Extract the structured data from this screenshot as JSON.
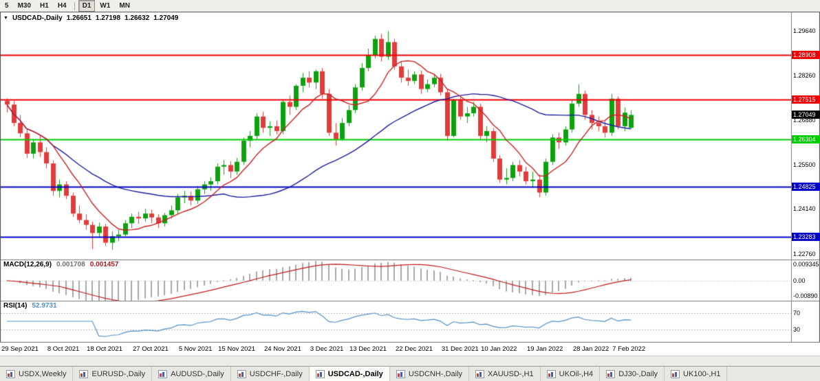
{
  "toolbar": {
    "timeframes": [
      "5",
      "M30",
      "H1",
      "H4",
      "D1",
      "W1",
      "MN"
    ],
    "active": "D1",
    "separator_after": "H4"
  },
  "chart": {
    "title": {
      "collapse_icon": "▼",
      "symbol": "USDCAD-,Daily",
      "open": "1.26651",
      "high": "1.27198",
      "low": "1.26632",
      "close": "1.27049"
    },
    "price_axis": {
      "grid": [
        {
          "text": "1.29640",
          "value": 1.2964
        },
        {
          "text": "1.28260",
          "value": 1.2826
        },
        {
          "text": "1.26880",
          "value": 1.2688
        },
        {
          "text": "1.25500",
          "value": 1.255
        },
        {
          "text": "1.24140",
          "value": 1.2414
        },
        {
          "text": "1.22760",
          "value": 1.2276
        }
      ]
    },
    "hlines": [
      {
        "text": "1.28908",
        "value": 1.28908,
        "color": "#ee0000",
        "width": 2
      },
      {
        "text": "1.27515",
        "value": 1.27515,
        "color": "#ee0000",
        "width": 2
      },
      {
        "text": "1.26304",
        "value": 1.26304,
        "color": "#00cc00",
        "width": 2
      },
      {
        "text": "1.24825",
        "value": 1.24825,
        "color": "#0000c8",
        "width": 2
      },
      {
        "text": "1.23283",
        "value": 1.23283,
        "color": "#0000c8",
        "width": 2
      }
    ],
    "current_price": {
      "text": "1.27049",
      "value": 1.27049,
      "bg": "#000000"
    }
  },
  "macd": {
    "name": "MACD(12,26,9)",
    "main_value": "0.001708",
    "signal_value": "0.001457",
    "axis_max": "0.009345",
    "axis_zero": "0.00",
    "axis_min": "-0.00890",
    "range_max": 0.009345,
    "range_min": -0.0089
  },
  "rsi": {
    "name": "RSI(14)",
    "value": "52.9731",
    "levels": [
      {
        "text": "70",
        "value": 70
      },
      {
        "text": "30",
        "value": 30
      }
    ]
  },
  "tabs": [
    {
      "label": "USDX,Weekly",
      "active": false
    },
    {
      "label": "EURUSD-,Daily",
      "active": false
    },
    {
      "label": "AUDUSD-,Daily",
      "active": false
    },
    {
      "label": "USDCHF-,Daily",
      "active": false
    },
    {
      "label": "USDCAD-,Daily",
      "active": true
    },
    {
      "label": "USDCNH-,Daily",
      "active": false
    },
    {
      "label": "XAUUSD-,H1",
      "active": false
    },
    {
      "label": "UKOil-,H4",
      "active": false
    },
    {
      "label": "DJ30-,Daily",
      "active": false
    },
    {
      "label": "UK100-,H1",
      "active": false
    }
  ],
  "colors": {
    "bull": "#0ea10e",
    "bear": "#e23b3b",
    "ma_fast": "#cc2020",
    "ma_slow": "#1c1c9e",
    "macd_hist": "#a8a8a8",
    "macd_signal": "#c01818",
    "rsi": "#4f8fca"
  },
  "chart_data": {
    "type": "candlestick",
    "symbol": "USDCAD",
    "timeframe": "Daily",
    "title": "USDCAD-,Daily",
    "ohlc_current": {
      "open": 1.26651,
      "high": 1.27198,
      "low": 1.26632,
      "close": 1.27049
    },
    "price_range": [
      1.2258,
      1.3022
    ],
    "horizontal_levels": [
      1.28908,
      1.27515,
      1.26304,
      1.24825,
      1.23283
    ],
    "moving_averages": [
      {
        "name": "fast-ma",
        "period": 8,
        "color": "#cc2020"
      },
      {
        "name": "slow-ma",
        "period": 34,
        "color": "#1c1c9e"
      }
    ],
    "indicators": [
      {
        "type": "MACD",
        "params": [
          12,
          26,
          9
        ],
        "last_main": 0.001708,
        "last_signal": 0.001457,
        "panel_range": [
          -0.0089,
          0.009345
        ]
      },
      {
        "type": "RSI",
        "params": [
          14
        ],
        "last": 52.9731,
        "levels": [
          70,
          30
        ]
      }
    ],
    "x_labels": [
      {
        "text": "29 Sep 2021",
        "bar": 0
      },
      {
        "text": "8 Oct 2021",
        "bar": 7
      },
      {
        "text": "18 Oct 2021",
        "bar": 13
      },
      {
        "text": "27 Oct 2021",
        "bar": 20
      },
      {
        "text": "5 Nov 2021",
        "bar": 27
      },
      {
        "text": "15 Nov 2021",
        "bar": 33
      },
      {
        "text": "24 Nov 2021",
        "bar": 40
      },
      {
        "text": "3 Dec 2021",
        "bar": 47
      },
      {
        "text": "13 Dec 2021",
        "bar": 53
      },
      {
        "text": "22 Dec 2021",
        "bar": 60
      },
      {
        "text": "31 Dec 2021",
        "bar": 67
      },
      {
        "text": "10 Jan 2022",
        "bar": 73
      },
      {
        "text": "19 Jan 2022",
        "bar": 80
      },
      {
        "text": "28 Jan 2022",
        "bar": 87
      },
      {
        "text": "7 Feb 2022",
        "bar": 93
      }
    ],
    "candles": [
      [
        1.2748,
        1.2756,
        1.2712,
        1.2737
      ],
      [
        1.2737,
        1.2748,
        1.267,
        1.268
      ],
      [
        1.268,
        1.2705,
        1.2636,
        1.2648
      ],
      [
        1.2648,
        1.2663,
        1.2572,
        1.2585
      ],
      [
        1.2585,
        1.263,
        1.257,
        1.262
      ],
      [
        1.262,
        1.264,
        1.2575,
        1.259
      ],
      [
        1.259,
        1.2605,
        1.254,
        1.2555
      ],
      [
        1.2555,
        1.2565,
        1.2455,
        1.247
      ],
      [
        1.247,
        1.2505,
        1.245,
        1.249
      ],
      [
        1.249,
        1.25,
        1.2445,
        1.2455
      ],
      [
        1.2455,
        1.2465,
        1.239,
        1.24
      ],
      [
        1.24,
        1.2425,
        1.237,
        1.238
      ],
      [
        1.238,
        1.2398,
        1.235,
        1.2365
      ],
      [
        1.2365,
        1.2375,
        1.229,
        1.234
      ],
      [
        1.234,
        1.2372,
        1.2325,
        1.236
      ],
      [
        1.236,
        1.2368,
        1.23,
        1.231
      ],
      [
        1.231,
        1.2345,
        1.2288,
        1.233
      ],
      [
        1.233,
        1.235,
        1.2315,
        1.2335
      ],
      [
        1.2335,
        1.238,
        1.233,
        1.237
      ],
      [
        1.237,
        1.24,
        1.2355,
        1.239
      ],
      [
        1.239,
        1.2405,
        1.2368,
        1.2385
      ],
      [
        1.2385,
        1.2415,
        1.2375,
        1.24
      ],
      [
        1.24,
        1.2412,
        1.237,
        1.2388
      ],
      [
        1.2388,
        1.2398,
        1.2355,
        1.237
      ],
      [
        1.237,
        1.2402,
        1.236,
        1.2395
      ],
      [
        1.2395,
        1.2425,
        1.2385,
        1.241
      ],
      [
        1.241,
        1.246,
        1.24,
        1.245
      ],
      [
        1.245,
        1.247,
        1.2432,
        1.2455
      ],
      [
        1.2455,
        1.2468,
        1.2425,
        1.244
      ],
      [
        1.244,
        1.2485,
        1.243,
        1.2475
      ],
      [
        1.2475,
        1.25,
        1.246,
        1.249
      ],
      [
        1.249,
        1.2512,
        1.247,
        1.25
      ],
      [
        1.25,
        1.2555,
        1.249,
        1.2545
      ],
      [
        1.2545,
        1.2565,
        1.252,
        1.255
      ],
      [
        1.255,
        1.2562,
        1.251,
        1.253
      ],
      [
        1.253,
        1.2572,
        1.252,
        1.256
      ],
      [
        1.256,
        1.2635,
        1.255,
        1.2625
      ],
      [
        1.2625,
        1.2655,
        1.2605,
        1.264
      ],
      [
        1.264,
        1.271,
        1.263,
        1.27
      ],
      [
        1.27,
        1.2715,
        1.265,
        1.2665
      ],
      [
        1.2665,
        1.2685,
        1.264,
        1.267
      ],
      [
        1.267,
        1.2688,
        1.2645,
        1.2655
      ],
      [
        1.2655,
        1.275,
        1.2645,
        1.2745
      ],
      [
        1.2745,
        1.2765,
        1.2705,
        1.273
      ],
      [
        1.273,
        1.28,
        1.272,
        1.2795
      ],
      [
        1.2795,
        1.2835,
        1.2775,
        1.282
      ],
      [
        1.282,
        1.284,
        1.279,
        1.2805
      ],
      [
        1.2805,
        1.2845,
        1.2785,
        1.284
      ],
      [
        1.284,
        1.285,
        1.2755,
        1.277
      ],
      [
        1.277,
        1.2785,
        1.264,
        1.265
      ],
      [
        1.265,
        1.268,
        1.261,
        1.263
      ],
      [
        1.263,
        1.2695,
        1.2625,
        1.268
      ],
      [
        1.268,
        1.2735,
        1.267,
        1.272
      ],
      [
        1.272,
        1.28,
        1.271,
        1.279
      ],
      [
        1.279,
        1.2865,
        1.278,
        1.285
      ],
      [
        1.285,
        1.291,
        1.284,
        1.289
      ],
      [
        1.289,
        1.295,
        1.288,
        1.294
      ],
      [
        1.294,
        1.2955,
        1.287,
        1.2885
      ],
      [
        1.2885,
        1.2964,
        1.2875,
        1.293
      ],
      [
        1.293,
        1.294,
        1.2845,
        1.2855
      ],
      [
        1.2855,
        1.287,
        1.2805,
        1.282
      ],
      [
        1.282,
        1.2845,
        1.2795,
        1.281
      ],
      [
        1.281,
        1.284,
        1.28,
        1.283
      ],
      [
        1.283,
        1.2842,
        1.277,
        1.2785
      ],
      [
        1.2785,
        1.2815,
        1.2775,
        1.28
      ],
      [
        1.28,
        1.283,
        1.279,
        1.282
      ],
      [
        1.282,
        1.2832,
        1.2765,
        1.2775
      ],
      [
        1.2775,
        1.2785,
        1.2625,
        1.264
      ],
      [
        1.264,
        1.2755,
        1.2635,
        1.275
      ],
      [
        1.275,
        1.276,
        1.269,
        1.27
      ],
      [
        1.27,
        1.273,
        1.268,
        1.271
      ],
      [
        1.271,
        1.2745,
        1.27,
        1.273
      ],
      [
        1.273,
        1.274,
        1.263,
        1.264
      ],
      [
        1.264,
        1.267,
        1.262,
        1.2655
      ],
      [
        1.2655,
        1.2665,
        1.256,
        1.257
      ],
      [
        1.257,
        1.258,
        1.2495,
        1.2505
      ],
      [
        1.2505,
        1.254,
        1.249,
        1.251
      ],
      [
        1.251,
        1.256,
        1.25,
        1.255
      ],
      [
        1.255,
        1.2565,
        1.2515,
        1.253
      ],
      [
        1.253,
        1.2545,
        1.249,
        1.25
      ],
      [
        1.25,
        1.253,
        1.248,
        1.2505
      ],
      [
        1.2505,
        1.252,
        1.245,
        1.2465
      ],
      [
        1.2465,
        1.257,
        1.2455,
        1.256
      ],
      [
        1.256,
        1.2645,
        1.255,
        1.2635
      ],
      [
        1.2635,
        1.265,
        1.26,
        1.262
      ],
      [
        1.262,
        1.267,
        1.261,
        1.266
      ],
      [
        1.266,
        1.275,
        1.265,
        1.274
      ],
      [
        1.274,
        1.28,
        1.273,
        1.277
      ],
      [
        1.277,
        1.278,
        1.269,
        1.2705
      ],
      [
        1.2705,
        1.272,
        1.266,
        1.268
      ],
      [
        1.268,
        1.27,
        1.2655,
        1.267
      ],
      [
        1.267,
        1.2685,
        1.2635,
        1.265
      ],
      [
        1.265,
        1.277,
        1.264,
        1.2755
      ],
      [
        1.2755,
        1.2762,
        1.266,
        1.267
      ],
      [
        1.267,
        1.2728,
        1.2655,
        1.2712
      ],
      [
        1.26651,
        1.27198,
        1.26632,
        1.27049
      ]
    ]
  }
}
